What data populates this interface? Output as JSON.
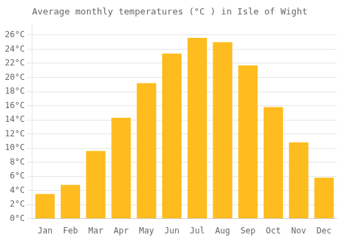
{
  "chart_data": {
    "type": "bar",
    "title": "Average monthly temperatures (°C ) in Isle of Wight",
    "categories": [
      "Jan",
      "Feb",
      "Mar",
      "Apr",
      "May",
      "Jun",
      "Jul",
      "Aug",
      "Sep",
      "Oct",
      "Nov",
      "Dec"
    ],
    "values": [
      3.5,
      4.8,
      9.6,
      14.3,
      19.2,
      23.4,
      25.6,
      25.0,
      21.7,
      15.8,
      10.8,
      5.8
    ],
    "color": "#FFBC1F",
    "ylim": [
      0,
      27.5
    ],
    "yticks": [
      {
        "value": 0,
        "label": "0°C"
      },
      {
        "value": 2,
        "label": "2°C"
      },
      {
        "value": 4,
        "label": "4°C"
      },
      {
        "value": 6,
        "label": "6°C"
      },
      {
        "value": 8,
        "label": "8°C"
      },
      {
        "value": 10,
        "label": "10°C"
      },
      {
        "value": 12,
        "label": "12°C"
      },
      {
        "value": 14,
        "label": "14°C"
      },
      {
        "value": 16,
        "label": "16°C"
      },
      {
        "value": 18,
        "label": "18°C"
      },
      {
        "value": 20,
        "label": "20°C"
      },
      {
        "value": 22,
        "label": "22°C"
      },
      {
        "value": 24,
        "label": "24°C"
      },
      {
        "value": 26,
        "label": "26°C"
      }
    ],
    "grid": true
  }
}
